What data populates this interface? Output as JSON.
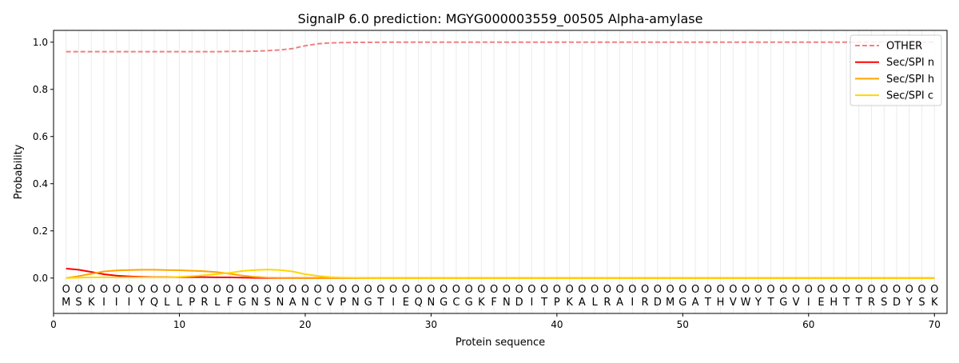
{
  "chart_data": {
    "type": "line",
    "title": "SignalP 6.0 prediction: MGYG000003559_00505 Alpha-amylase",
    "xlabel": "Protein sequence",
    "ylabel": "Probability",
    "xlim": [
      0,
      71
    ],
    "ylim": [
      -0.15,
      1.05
    ],
    "xticks": [
      0,
      10,
      20,
      30,
      40,
      50,
      60,
      70
    ],
    "yticks": [
      0.0,
      0.2,
      0.4,
      0.6,
      0.8,
      1.0
    ],
    "ytick_labels": [
      "0.0",
      "0.2",
      "0.4",
      "0.6",
      "0.8",
      "1.0"
    ],
    "grid": "vertical lines at each residue",
    "legend_placement": "top-right",
    "sequence": [
      "M",
      "S",
      "K",
      "I",
      "I",
      "I",
      "Y",
      "Q",
      "L",
      "L",
      "P",
      "R",
      "L",
      "F",
      "G",
      "N",
      "S",
      "N",
      "A",
      "N",
      "C",
      "V",
      "P",
      "N",
      "G",
      "T",
      "I",
      "E",
      "Q",
      "N",
      "G",
      "C",
      "G",
      "K",
      "F",
      "N",
      "D",
      "I",
      "T",
      "P",
      "K",
      "A",
      "L",
      "R",
      "A",
      "I",
      "R",
      "D",
      "M",
      "G",
      "A",
      "T",
      "H",
      "V",
      "W",
      "Y",
      "T",
      "G",
      "V",
      "I",
      "E",
      "H",
      "T",
      "T",
      "R",
      "S",
      "D",
      "Y",
      "S",
      "K"
    ],
    "labels_marker": "O",
    "series": [
      {
        "name": "OTHER",
        "color": "#f08080",
        "dash": true,
        "values": [
          0.96,
          0.96,
          0.96,
          0.96,
          0.96,
          0.96,
          0.96,
          0.96,
          0.96,
          0.96,
          0.96,
          0.96,
          0.96,
          0.961,
          0.961,
          0.962,
          0.964,
          0.967,
          0.973,
          0.985,
          0.993,
          0.997,
          0.998,
          0.999,
          0.999,
          1,
          1,
          1,
          1,
          1,
          1,
          1,
          1,
          1,
          1,
          1,
          1,
          1,
          1,
          1,
          1,
          1,
          1,
          1,
          1,
          1,
          1,
          1,
          1,
          1,
          1,
          1,
          1,
          1,
          1,
          1,
          1,
          1,
          1,
          1,
          1,
          1,
          1,
          1,
          1,
          1,
          1,
          1,
          1,
          1
        ]
      },
      {
        "name": "Sec/SPI n",
        "color": "#ff0000",
        "dash": false,
        "values": [
          0.04,
          0.035,
          0.026,
          0.016,
          0.01,
          0.007,
          0.005,
          0.004,
          0.004,
          0.004,
          0.004,
          0.004,
          0.003,
          0.003,
          0.002,
          0.001,
          0,
          0,
          0,
          0,
          0,
          0,
          0,
          0,
          0,
          0,
          0,
          0,
          0,
          0,
          0,
          0,
          0,
          0,
          0,
          0,
          0,
          0,
          0,
          0,
          0,
          0,
          0,
          0,
          0,
          0,
          0,
          0,
          0,
          0,
          0,
          0,
          0,
          0,
          0,
          0,
          0,
          0,
          0,
          0,
          0,
          0,
          0,
          0,
          0,
          0,
          0,
          0,
          0,
          0
        ]
      },
      {
        "name": "Sec/SPI h",
        "color": "#ffa500",
        "dash": false,
        "values": [
          0,
          0.008,
          0.018,
          0.028,
          0.032,
          0.034,
          0.035,
          0.035,
          0.034,
          0.033,
          0.031,
          0.029,
          0.025,
          0.018,
          0.01,
          0.005,
          0.002,
          0.001,
          0,
          0,
          0,
          0,
          0,
          0,
          0,
          0,
          0,
          0,
          0,
          0,
          0,
          0,
          0,
          0,
          0,
          0,
          0,
          0,
          0,
          0,
          0,
          0,
          0,
          0,
          0,
          0,
          0,
          0,
          0,
          0,
          0,
          0,
          0,
          0,
          0,
          0,
          0,
          0,
          0,
          0,
          0,
          0,
          0,
          0,
          0,
          0,
          0,
          0,
          0,
          0
        ]
      },
      {
        "name": "Sec/SPI c",
        "color": "#ffd700",
        "dash": false,
        "values": [
          0,
          0.002,
          0.003,
          0.003,
          0.003,
          0.003,
          0.003,
          0.003,
          0.003,
          0.005,
          0.008,
          0.012,
          0.017,
          0.022,
          0.03,
          0.034,
          0.036,
          0.034,
          0.028,
          0.016,
          0.009,
          0.004,
          0.002,
          0.001,
          0,
          0,
          0,
          0,
          0,
          0,
          0,
          0,
          0,
          0,
          0,
          0,
          0,
          0,
          0,
          0,
          0,
          0,
          0,
          0,
          0,
          0,
          0,
          0,
          0,
          0,
          0,
          0,
          0,
          0,
          0,
          0,
          0,
          0,
          0,
          0,
          0,
          0,
          0,
          0,
          0,
          0,
          0,
          0,
          0,
          0
        ]
      }
    ]
  }
}
